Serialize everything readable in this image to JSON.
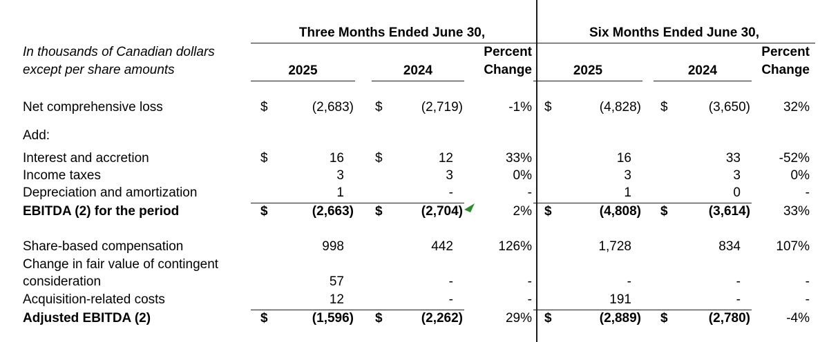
{
  "note_line1": "In thousands of Canadian dollars",
  "note_line2": "except per share amounts",
  "groups": [
    {
      "title": "Three Months Ended June 30,",
      "col_2025": "2025",
      "col_2024": "2024",
      "pct_line1": "Percent",
      "pct_line2": "Change"
    },
    {
      "title": "Six Months Ended June 30,",
      "col_2025": "2025",
      "col_2024": "2024",
      "pct_line1": "Percent",
      "pct_line2": "Change"
    }
  ],
  "flag_color": "#2e8b2e",
  "rows": [
    {
      "label": "Net comprehensive loss",
      "total": false,
      "flag": null,
      "cells": [
        "$",
        "(2,683)",
        "$",
        "(2,719)",
        "-1%",
        "$",
        "(4,828)",
        "$",
        "(3,650)",
        "32%"
      ]
    },
    {
      "label": "Add:",
      "total": false,
      "flag": null,
      "cells": [
        "",
        "",
        "",
        "",
        "",
        "",
        "",
        "",
        "",
        ""
      ]
    },
    {
      "label": "Interest and accretion",
      "total": false,
      "flag": null,
      "cells": [
        "$",
        "16",
        "$",
        "12",
        "33%",
        "",
        "16",
        "",
        "33",
        "-52%"
      ]
    },
    {
      "label": "Income taxes",
      "total": false,
      "flag": null,
      "cells": [
        "",
        "3",
        "",
        "3",
        "0%",
        "",
        "3",
        "",
        "3",
        "0%"
      ]
    },
    {
      "label": "Depreciation and amortization",
      "total": false,
      "flag": null,
      "cells": [
        "",
        "1",
        "",
        "-",
        "-",
        "",
        "1",
        "",
        "0",
        "-"
      ]
    },
    {
      "label": "EBITDA (2) for the period",
      "total": true,
      "flag": 3,
      "cells": [
        "$",
        "(2,663)",
        "$",
        "(2,704)",
        "2%",
        "$",
        "(4,808)",
        "$",
        "(3,614)",
        "33%"
      ]
    },
    {
      "label": "Share-based compensation",
      "total": false,
      "flag": null,
      "cells": [
        "",
        "998",
        "",
        "442",
        "126%",
        "",
        "1,728",
        "",
        "834",
        "107%"
      ]
    },
    {
      "label": "Change in fair value of contingent",
      "total": false,
      "flag": null,
      "cells": [
        "",
        "",
        "",
        "",
        "",
        "",
        "",
        "",
        "",
        ""
      ]
    },
    {
      "label": "consideration",
      "total": false,
      "flag": null,
      "cells": [
        "",
        "57",
        "",
        "-",
        "-",
        "",
        "-",
        "",
        "-",
        "-"
      ]
    },
    {
      "label": "Acquisition-related costs",
      "total": false,
      "flag": null,
      "cells": [
        "",
        "12",
        "",
        "-",
        "-",
        "",
        "191",
        "",
        "-",
        "-"
      ]
    },
    {
      "label": "Adjusted EBITDA (2)",
      "total": true,
      "flag": null,
      "cells": [
        "$",
        "(1,596)",
        "$",
        "(2,262)",
        "29%",
        "$",
        "(2,889)",
        "$",
        "(2,780)",
        "-4%"
      ]
    }
  ]
}
